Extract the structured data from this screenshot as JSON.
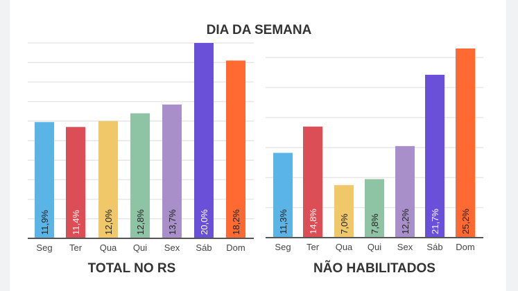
{
  "title": "DIA DA SEMANA",
  "colors": [
    "#5ab4e5",
    "#dc4e55",
    "#f0c86a",
    "#8ec3a4",
    "#a98fc9",
    "#6a4fd8",
    "#ff6a33"
  ],
  "label_colors": [
    "#222",
    "#fff",
    "#222",
    "#222",
    "#222",
    "#fff",
    "#222"
  ],
  "chart_data": [
    {
      "type": "bar",
      "title": "TOTAL NO RS",
      "categories": [
        "Seg",
        "Ter",
        "Qua",
        "Qui",
        "Sex",
        "Sáb",
        "Dom"
      ],
      "values": [
        11.9,
        11.4,
        12.0,
        12.8,
        13.7,
        20.0,
        18.2
      ],
      "labels": [
        "11,9%",
        "11,4%",
        "12,0%",
        "12,8%",
        "13,7%",
        "20,0%",
        "18,2%"
      ],
      "ylim": [
        0,
        20
      ],
      "grid_step": 2,
      "grid": true
    },
    {
      "type": "bar",
      "title": "NÃO HABILITADOS",
      "categories": [
        "Seg",
        "Ter",
        "Qua",
        "Qui",
        "Sex",
        "Sáb",
        "Dom"
      ],
      "values": [
        11.3,
        14.8,
        7.0,
        7.8,
        12.2,
        21.7,
        25.2
      ],
      "labels": [
        "11,3%",
        "14,8%",
        "7,0%",
        "7,8%",
        "12,2%",
        "21,7%",
        "25,2%"
      ],
      "ylim": [
        0,
        25.2
      ],
      "grid_step": 4,
      "grid": true
    }
  ]
}
